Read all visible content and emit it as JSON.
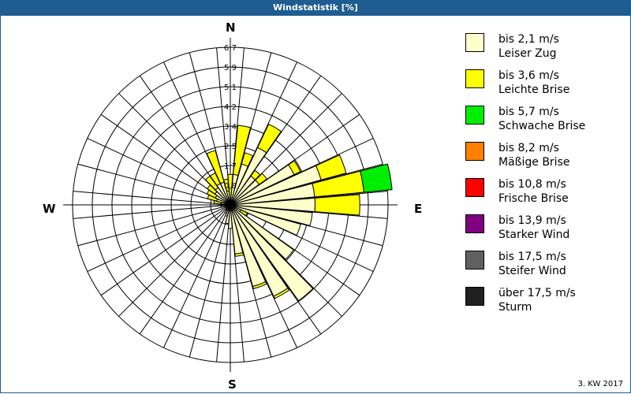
{
  "header": {
    "title": "Windstatistik [%]"
  },
  "compass": {
    "n": "N",
    "e": "E",
    "s": "S",
    "w": "W"
  },
  "footer": {
    "period": "3. KW 2017"
  },
  "legend": [
    {
      "range": "bis 2,1 m/s",
      "name": "Leiser Zug",
      "color": "#ffffcc"
    },
    {
      "range": "bis 3,6 m/s",
      "name": "Leichte Brise",
      "color": "#ffff00"
    },
    {
      "range": "bis 5,7 m/s",
      "name": "Schwache Brise",
      "color": "#00ee00"
    },
    {
      "range": "bis 8,2 m/s",
      "name": "Mäßige Brise",
      "color": "#ff8000"
    },
    {
      "range": "bis 10,8 m/s",
      "name": "Frische Brise",
      "color": "#ff0000"
    },
    {
      "range": "bis 13,9 m/s",
      "name": "Starker Wind",
      "color": "#800080"
    },
    {
      "range": "bis 17,5 m/s",
      "name": "Steifer Wind",
      "color": "#606060"
    },
    {
      "range": "über 17,5 m/s",
      "name": "Sturm",
      "color": "#202020"
    }
  ],
  "chart_data": {
    "type": "wind-rose",
    "title": "Windstatistik [%]",
    "subtitle": "3. KW 2017",
    "radial_ticks": [
      "0,8",
      "1,7",
      "2,5",
      "3,4",
      "4,2",
      "5,1",
      "5,9",
      "6,7"
    ],
    "radial_max": 6.7,
    "sector_width_deg": 10,
    "directions_deg": [
      0,
      10,
      20,
      30,
      40,
      50,
      60,
      70,
      80,
      90,
      100,
      110,
      120,
      130,
      140,
      150,
      160,
      170,
      180,
      190,
      200,
      210,
      220,
      230,
      240,
      250,
      260,
      270,
      280,
      290,
      300,
      310,
      320,
      330,
      340,
      350
    ],
    "series": [
      {
        "name": "bis 2,1 m/s",
        "values": [
          0.3,
          1.3,
          1.8,
          2.7,
          1.5,
          1.5,
          3.0,
          4.0,
          3.6,
          3.6,
          3.5,
          3.1,
          0.5,
          3.3,
          5.0,
          4.3,
          3.6,
          2.1,
          1.0,
          0.8,
          0.5,
          0.4,
          0.3,
          0.2,
          0.2,
          0.2,
          0.2,
          0.2,
          0.4,
          0.6,
          0.7,
          0.8,
          0.9,
          1.0,
          1.0,
          0.6
        ]
      },
      {
        "name": "bis 3,6 m/s",
        "values": [
          1.0,
          2.1,
          0.5,
          1.1,
          0.3,
          0.4,
          0.3,
          1.1,
          2.1,
          1.9,
          0.0,
          0.0,
          0.3,
          0.0,
          0.0,
          0.1,
          0.1,
          0.1,
          0.0,
          0.0,
          0.0,
          0.0,
          0.0,
          0.0,
          0.0,
          0.0,
          0.2,
          0.0,
          0.3,
          0.4,
          0.4,
          0.4,
          0.6,
          0.5,
          1.4,
          0.5
        ]
      },
      {
        "name": "bis 5,7 m/s",
        "values": [
          0,
          0,
          0,
          0,
          0,
          0,
          0,
          0,
          1.2,
          0,
          0,
          0,
          0,
          0,
          0,
          0,
          0,
          0,
          0,
          0,
          0,
          0,
          0,
          0,
          0,
          0,
          0,
          0,
          0,
          0,
          0,
          0,
          0,
          0,
          0,
          0
        ]
      },
      {
        "name": "bis 8,2 m/s",
        "values": [
          0,
          0,
          0,
          0,
          0,
          0,
          0,
          0,
          0,
          0,
          0,
          0,
          0,
          0,
          0,
          0,
          0,
          0,
          0,
          0,
          0,
          0,
          0,
          0,
          0,
          0,
          0,
          0,
          0,
          0,
          0,
          0,
          0,
          0,
          0,
          0
        ]
      },
      {
        "name": "bis 10,8 m/s",
        "values": [
          0,
          0,
          0,
          0,
          0,
          0,
          0,
          0,
          0,
          0,
          0,
          0,
          0,
          0,
          0,
          0,
          0,
          0,
          0,
          0,
          0,
          0,
          0,
          0,
          0,
          0,
          0,
          0,
          0,
          0,
          0,
          0,
          0,
          0,
          0,
          0
        ]
      },
      {
        "name": "bis 13,9 m/s",
        "values": [
          0,
          0,
          0,
          0,
          0,
          0,
          0,
          0,
          0,
          0,
          0,
          0,
          0,
          0,
          0,
          0,
          0,
          0,
          0,
          0,
          0,
          0,
          0,
          0,
          0,
          0,
          0,
          0,
          0,
          0,
          0,
          0,
          0,
          0,
          0,
          0
        ]
      },
      {
        "name": "bis 17,5 m/s",
        "values": [
          0,
          0,
          0,
          0,
          0,
          0,
          0,
          0,
          0,
          0,
          0,
          0,
          0,
          0,
          0,
          0,
          0,
          0,
          0,
          0,
          0,
          0,
          0,
          0,
          0,
          0,
          0,
          0,
          0,
          0,
          0,
          0,
          0,
          0,
          0,
          0
        ]
      },
      {
        "name": "über 17,5 m/s",
        "values": [
          0,
          0,
          0,
          0,
          0,
          0,
          0,
          0,
          0,
          0,
          0,
          0,
          0,
          0,
          0,
          0,
          0,
          0,
          0,
          0,
          0,
          0,
          0,
          0,
          0,
          0,
          0,
          0,
          0,
          0,
          0,
          0,
          0,
          0,
          0,
          0
        ]
      }
    ],
    "colors": [
      "#ffffcc",
      "#ffff00",
      "#00ee00",
      "#ff8000",
      "#ff0000",
      "#800080",
      "#606060",
      "#202020"
    ],
    "legend_position": "right",
    "grid": true
  }
}
